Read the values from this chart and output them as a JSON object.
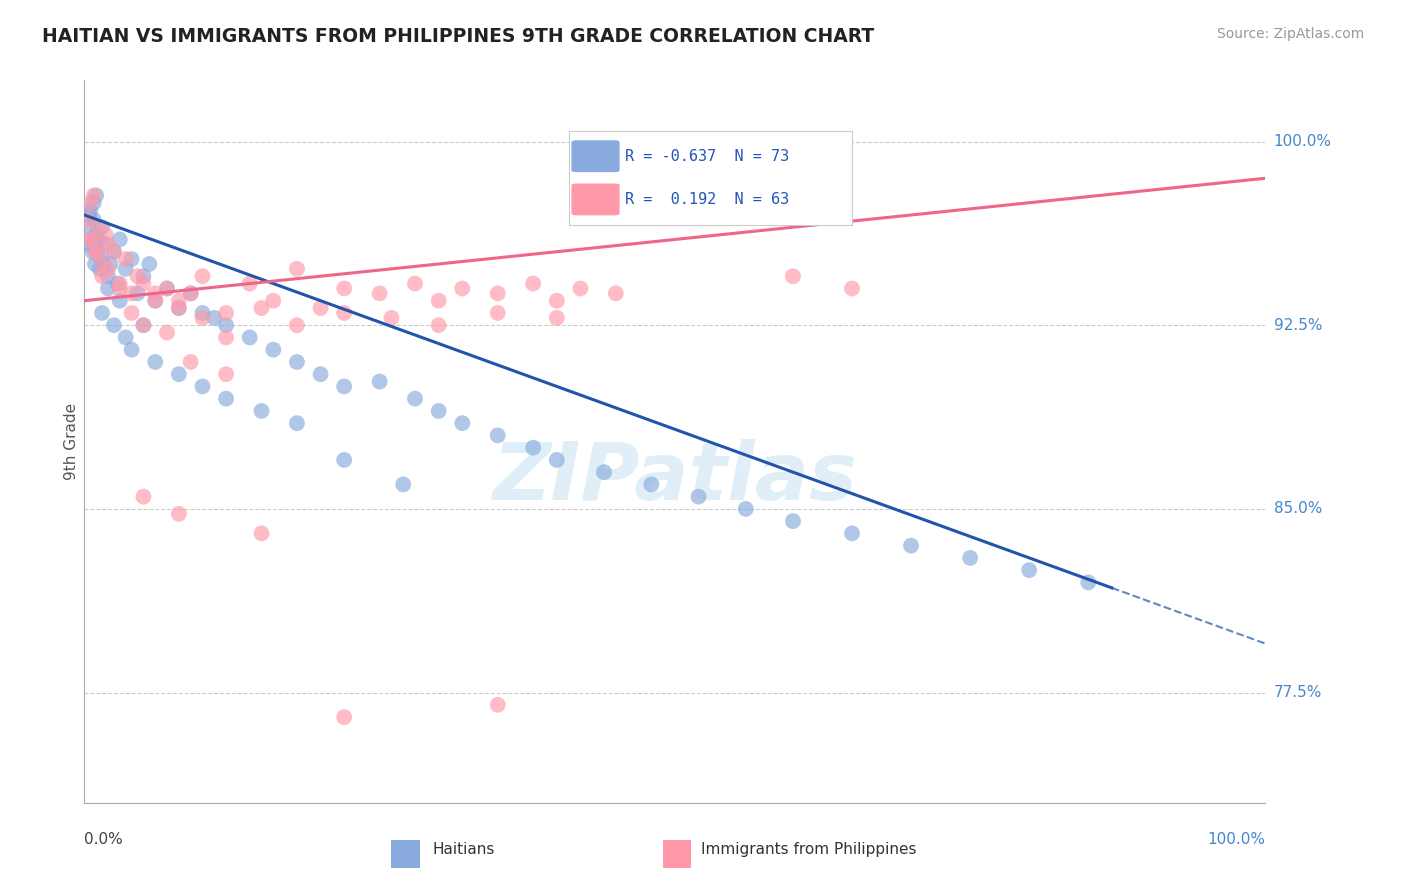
{
  "title": "HAITIAN VS IMMIGRANTS FROM PHILIPPINES 9TH GRADE CORRELATION CHART",
  "source": "Source: ZipAtlas.com",
  "ylabel": "9th Grade",
  "ytick_labels": [
    "77.5%",
    "85.0%",
    "92.5%",
    "100.0%"
  ],
  "ytick_values": [
    77.5,
    85.0,
    92.5,
    100.0
  ],
  "xlim": [
    0.0,
    100.0
  ],
  "ylim": [
    73.0,
    102.5
  ],
  "blue_R": -0.637,
  "blue_N": 73,
  "pink_R": 0.192,
  "pink_N": 63,
  "blue_color": "#88AADD",
  "pink_color": "#FF99AA",
  "trend_blue_color": "#2255AA",
  "trend_pink_color": "#EE6688",
  "watermark": "ZIPatlas",
  "watermark_color": "#BBDDEE",
  "blue_trend_x0": 0.0,
  "blue_trend_y0": 97.0,
  "blue_trend_x1": 100.0,
  "blue_trend_y1": 79.5,
  "blue_solid_end": 87.0,
  "pink_trend_x0": 0.0,
  "pink_trend_y0": 93.5,
  "pink_trend_x1": 100.0,
  "pink_trend_y1": 98.5,
  "blue_scatter_x": [
    0.3,
    0.4,
    0.5,
    0.5,
    0.6,
    0.7,
    0.8,
    0.8,
    0.9,
    1.0,
    1.0,
    1.1,
    1.2,
    1.3,
    1.4,
    1.5,
    1.6,
    1.8,
    2.0,
    2.2,
    2.5,
    2.8,
    3.0,
    3.5,
    4.0,
    4.5,
    5.0,
    5.5,
    6.0,
    7.0,
    8.0,
    9.0,
    10.0,
    11.0,
    12.0,
    14.0,
    16.0,
    18.0,
    20.0,
    22.0,
    25.0,
    28.0,
    30.0,
    32.0,
    35.0,
    38.0,
    40.0,
    44.0,
    48.0,
    52.0,
    56.0,
    60.0,
    65.0,
    70.0,
    75.0,
    80.0,
    85.0,
    1.5,
    2.0,
    2.5,
    3.0,
    3.5,
    4.0,
    5.0,
    6.0,
    8.0,
    10.0,
    12.0,
    15.0,
    18.0,
    22.0,
    27.0
  ],
  "blue_scatter_y": [
    96.5,
    97.0,
    95.8,
    97.2,
    96.0,
    95.5,
    96.8,
    97.5,
    95.0,
    96.2,
    97.8,
    95.5,
    96.0,
    94.8,
    95.2,
    96.5,
    95.0,
    95.8,
    94.5,
    95.0,
    95.5,
    94.2,
    96.0,
    94.8,
    95.2,
    93.8,
    94.5,
    95.0,
    93.5,
    94.0,
    93.2,
    93.8,
    93.0,
    92.8,
    92.5,
    92.0,
    91.5,
    91.0,
    90.5,
    90.0,
    90.2,
    89.5,
    89.0,
    88.5,
    88.0,
    87.5,
    87.0,
    86.5,
    86.0,
    85.5,
    85.0,
    84.5,
    84.0,
    83.5,
    83.0,
    82.5,
    82.0,
    93.0,
    94.0,
    92.5,
    93.5,
    92.0,
    91.5,
    92.5,
    91.0,
    90.5,
    90.0,
    89.5,
    89.0,
    88.5,
    87.0,
    86.0
  ],
  "pink_scatter_x": [
    0.3,
    0.5,
    0.7,
    0.8,
    1.0,
    1.2,
    1.5,
    1.8,
    2.0,
    2.5,
    3.0,
    3.5,
    4.0,
    4.5,
    5.0,
    6.0,
    7.0,
    8.0,
    9.0,
    10.0,
    12.0,
    14.0,
    16.0,
    18.0,
    20.0,
    22.0,
    25.0,
    28.0,
    30.0,
    32.0,
    35.0,
    38.0,
    40.0,
    42.0,
    45.0,
    0.5,
    1.0,
    1.5,
    2.0,
    3.0,
    4.0,
    5.0,
    6.0,
    7.0,
    8.0,
    10.0,
    12.0,
    15.0,
    18.0,
    22.0,
    26.0,
    30.0,
    35.0,
    40.0,
    9.0,
    12.0,
    5.0,
    8.0,
    35.0,
    22.0,
    15.0,
    60.0,
    65.0
  ],
  "pink_scatter_y": [
    96.8,
    97.5,
    96.0,
    97.8,
    95.5,
    96.5,
    95.0,
    96.2,
    94.8,
    95.5,
    94.0,
    95.2,
    93.8,
    94.5,
    94.2,
    93.5,
    94.0,
    93.2,
    93.8,
    94.5,
    93.0,
    94.2,
    93.5,
    94.8,
    93.2,
    94.0,
    93.8,
    94.2,
    93.5,
    94.0,
    93.8,
    94.2,
    93.5,
    94.0,
    93.8,
    96.0,
    95.5,
    94.5,
    95.8,
    94.2,
    93.0,
    92.5,
    93.8,
    92.2,
    93.5,
    92.8,
    92.0,
    93.2,
    92.5,
    93.0,
    92.8,
    92.5,
    93.0,
    92.8,
    91.0,
    90.5,
    85.5,
    84.8,
    77.0,
    76.5,
    84.0,
    94.5,
    94.0
  ]
}
